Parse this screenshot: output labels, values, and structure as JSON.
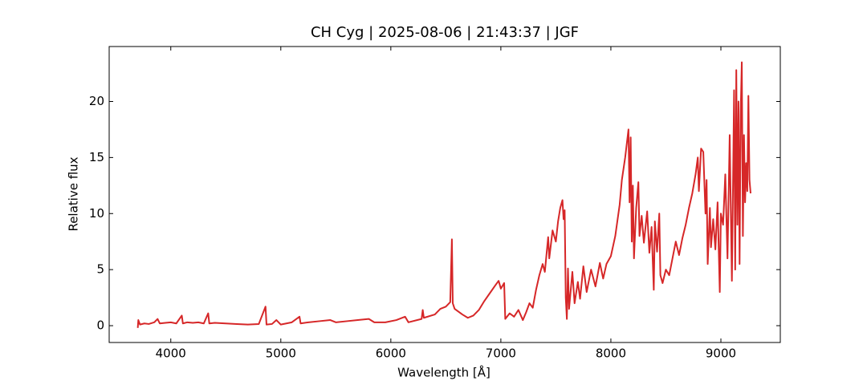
{
  "chart_data": {
    "type": "line",
    "title": "CH Cyg | 2025-08-06 | 21:43:37 | JGF",
    "xlabel": "Wavelength [Å]",
    "ylabel": "Relative flux",
    "color": "#d62728",
    "xlim": [
      3440,
      9540
    ],
    "ylim": [
      -1.5,
      24.9
    ],
    "xticks": [
      4000,
      5000,
      6000,
      7000,
      8000,
      9000
    ],
    "yticks": [
      0,
      5,
      10,
      15,
      20
    ],
    "x": [
      3700,
      3705,
      3720,
      3760,
      3800,
      3850,
      3880,
      3900,
      3950,
      4000,
      4050,
      4100,
      4110,
      4150,
      4200,
      4250,
      4300,
      4340,
      4350,
      4400,
      4500,
      4600,
      4700,
      4800,
      4861,
      4870,
      4920,
      4960,
      5000,
      5050,
      5100,
      5170,
      5180,
      5250,
      5350,
      5450,
      5500,
      5600,
      5700,
      5800,
      5850,
      5950,
      6050,
      6130,
      6160,
      6280,
      6290,
      6300,
      6400,
      6450,
      6500,
      6540,
      6555,
      6563,
      6580,
      6650,
      6700,
      6750,
      6800,
      6850,
      6900,
      6950,
      6980,
      7000,
      7030,
      7040,
      7080,
      7120,
      7160,
      7200,
      7230,
      7260,
      7290,
      7320,
      7350,
      7380,
      7400,
      7430,
      7440,
      7470,
      7500,
      7520,
      7540,
      7560,
      7570,
      7580,
      7590,
      7600,
      7610,
      7620,
      7650,
      7670,
      7700,
      7720,
      7750,
      7780,
      7820,
      7860,
      7900,
      7930,
      7960,
      8000,
      8040,
      8080,
      8100,
      8130,
      8160,
      8170,
      8180,
      8190,
      8200,
      8210,
      8230,
      8250,
      8260,
      8280,
      8300,
      8330,
      8350,
      8370,
      8390,
      8400,
      8420,
      8440,
      8450,
      8470,
      8500,
      8530,
      8560,
      8590,
      8620,
      8650,
      8680,
      8710,
      8740,
      8770,
      8790,
      8800,
      8820,
      8840,
      8860,
      8870,
      8880,
      8900,
      8910,
      8930,
      8950,
      8970,
      8990,
      9000,
      9020,
      9040,
      9060,
      9080,
      9100,
      9120,
      9130,
      9140,
      9150,
      9160,
      9170,
      9180,
      9190,
      9200,
      9210,
      9220,
      9230,
      9240,
      9250,
      9260,
      9270
    ],
    "values": [
      -0.2,
      0.5,
      0.1,
      0.2,
      0.15,
      0.3,
      0.6,
      0.2,
      0.25,
      0.3,
      0.2,
      0.9,
      0.2,
      0.3,
      0.25,
      0.3,
      0.2,
      1.1,
      0.2,
      0.25,
      0.2,
      0.15,
      0.1,
      0.15,
      1.7,
      0.1,
      0.15,
      0.5,
      0.1,
      0.2,
      0.3,
      0.8,
      0.2,
      0.3,
      0.4,
      0.5,
      0.3,
      0.4,
      0.5,
      0.6,
      0.3,
      0.3,
      0.5,
      0.8,
      0.3,
      0.6,
      1.4,
      0.7,
      1.0,
      1.5,
      1.7,
      2.1,
      7.7,
      2.0,
      1.5,
      1.0,
      0.7,
      0.9,
      1.4,
      2.2,
      2.9,
      3.6,
      4.0,
      3.3,
      3.8,
      0.6,
      1.1,
      0.8,
      1.4,
      0.5,
      1.2,
      2.0,
      1.6,
      3.2,
      4.5,
      5.5,
      4.8,
      7.9,
      6.0,
      8.5,
      7.5,
      9.3,
      10.5,
      11.2,
      9.5,
      10.3,
      2.5,
      0.6,
      5.1,
      1.5,
      4.8,
      2.0,
      3.9,
      2.4,
      5.3,
      3.0,
      5.0,
      3.5,
      5.6,
      4.2,
      5.5,
      6.2,
      8.0,
      10.8,
      13.0,
      15.0,
      17.5,
      11.0,
      16.8,
      7.5,
      12.5,
      6.0,
      10.5,
      12.8,
      8.0,
      9.8,
      7.4,
      10.2,
      6.5,
      8.8,
      3.2,
      9.3,
      6.6,
      10.0,
      4.5,
      3.8,
      5.0,
      4.5,
      6.0,
      7.5,
      6.3,
      7.8,
      9.0,
      10.5,
      11.8,
      13.5,
      15.0,
      12.0,
      15.8,
      15.5,
      10.0,
      13.0,
      5.5,
      10.5,
      7.0,
      9.5,
      6.8,
      11.0,
      3.0,
      10.0,
      9.0,
      13.5,
      6.0,
      17.0,
      4.0,
      21.0,
      5.0,
      22.8,
      9.0,
      20.0,
      5.5,
      19.0,
      23.5,
      8.0,
      17.0,
      11.0,
      14.5,
      12.0,
      20.5,
      13.0,
      11.8
    ]
  }
}
